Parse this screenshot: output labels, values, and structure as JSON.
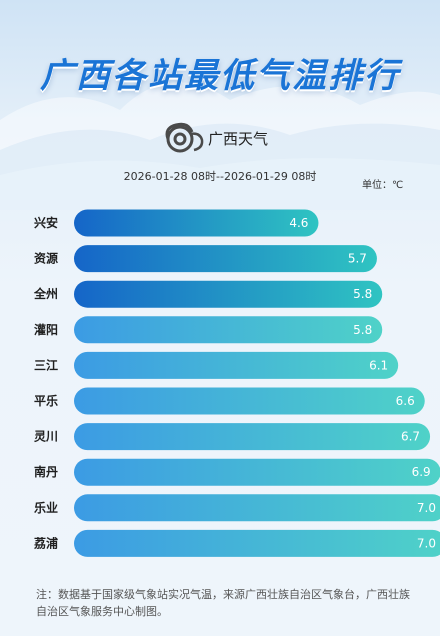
{
  "page": {
    "title": "广西各站最低气温排行",
    "brand": "广西天气",
    "period": "2026-01-28 08时--2026-01-29 08时",
    "unit": "单位：℃",
    "note": "注：数据基于国家级气象站实况气温，来源广西壮族自治区气象台，广西壮族自治区气象服务中心制图。"
  },
  "colors": {
    "title": "#1a74d6",
    "bar_dark_start": "#1565c8",
    "bar_dark_end": "#2fc4c2",
    "bar_light_start": "#3c9be4",
    "bar_light_end": "#4fd2c8"
  },
  "chart_data": {
    "type": "bar",
    "orientation": "horizontal",
    "categories": [
      "兴安",
      "资源",
      "全州",
      "灌阳",
      "三江",
      "平乐",
      "灵川",
      "南丹",
      "乐业",
      "荔浦"
    ],
    "values": [
      4.6,
      5.7,
      5.8,
      5.8,
      6.1,
      6.6,
      6.7,
      6.9,
      7.0,
      7.0
    ],
    "labels": [
      "4.6",
      "5.7",
      "5.8",
      "5.8",
      "6.1",
      "6.6",
      "6.7",
      "6.9",
      "7.0",
      "7.0"
    ],
    "title": "广西各站最低气温排行",
    "unit": "℃",
    "grid": false,
    "legend": "none"
  }
}
